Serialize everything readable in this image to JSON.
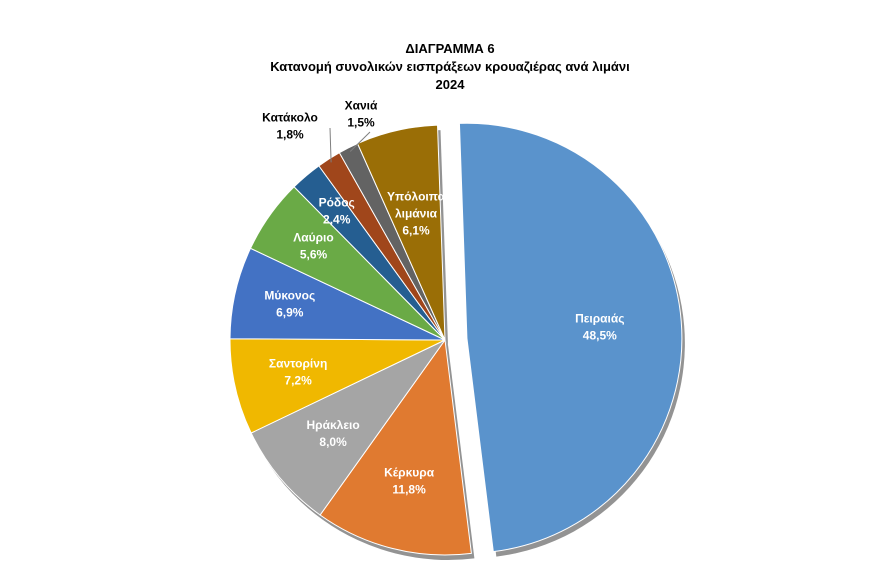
{
  "chart_data": {
    "type": "pie",
    "title": "ΔΙΑΓΡΑΜΜΑ 6",
    "subtitle": "Κατανομή συνολικών εισπράξεων κρουαζιέρας ανά λιμάνι",
    "year": "2024",
    "exploded": true,
    "slices": [
      {
        "label": "Πειραιάς",
        "value_label": "48,5%",
        "value": 48.5,
        "color": "#5a93cc"
      },
      {
        "label": "Κέρκυρα",
        "value_label": "11,8%",
        "value": 11.8,
        "color": "#e07a30"
      },
      {
        "label": "Ηράκλειο",
        "value_label": "8,0%",
        "value": 8.0,
        "color": "#a5a5a5"
      },
      {
        "label": "Σαντορίνη",
        "value_label": "7,2%",
        "value": 7.2,
        "color": "#f0b800"
      },
      {
        "label": "Μύκονος",
        "value_label": "6,9%",
        "value": 6.9,
        "color": "#4372c4"
      },
      {
        "label": "Λαύριο",
        "value_label": "5,6%",
        "value": 5.6,
        "color": "#6aaa46"
      },
      {
        "label": "Ρόδος",
        "value_label": "2,4%",
        "value": 2.4,
        "color": "#255e91"
      },
      {
        "label": "Κατάκολο",
        "value_label": "1,8%",
        "value": 1.8,
        "color": "#a0461b"
      },
      {
        "label": "Χανιά",
        "value_label": "1,5%",
        "value": 1.5,
        "color": "#636363"
      },
      {
        "label": "Υπόλοιπα λιμάνια",
        "value_label": "6,1%",
        "value": 6.1,
        "color": "#9a6e06"
      }
    ]
  }
}
